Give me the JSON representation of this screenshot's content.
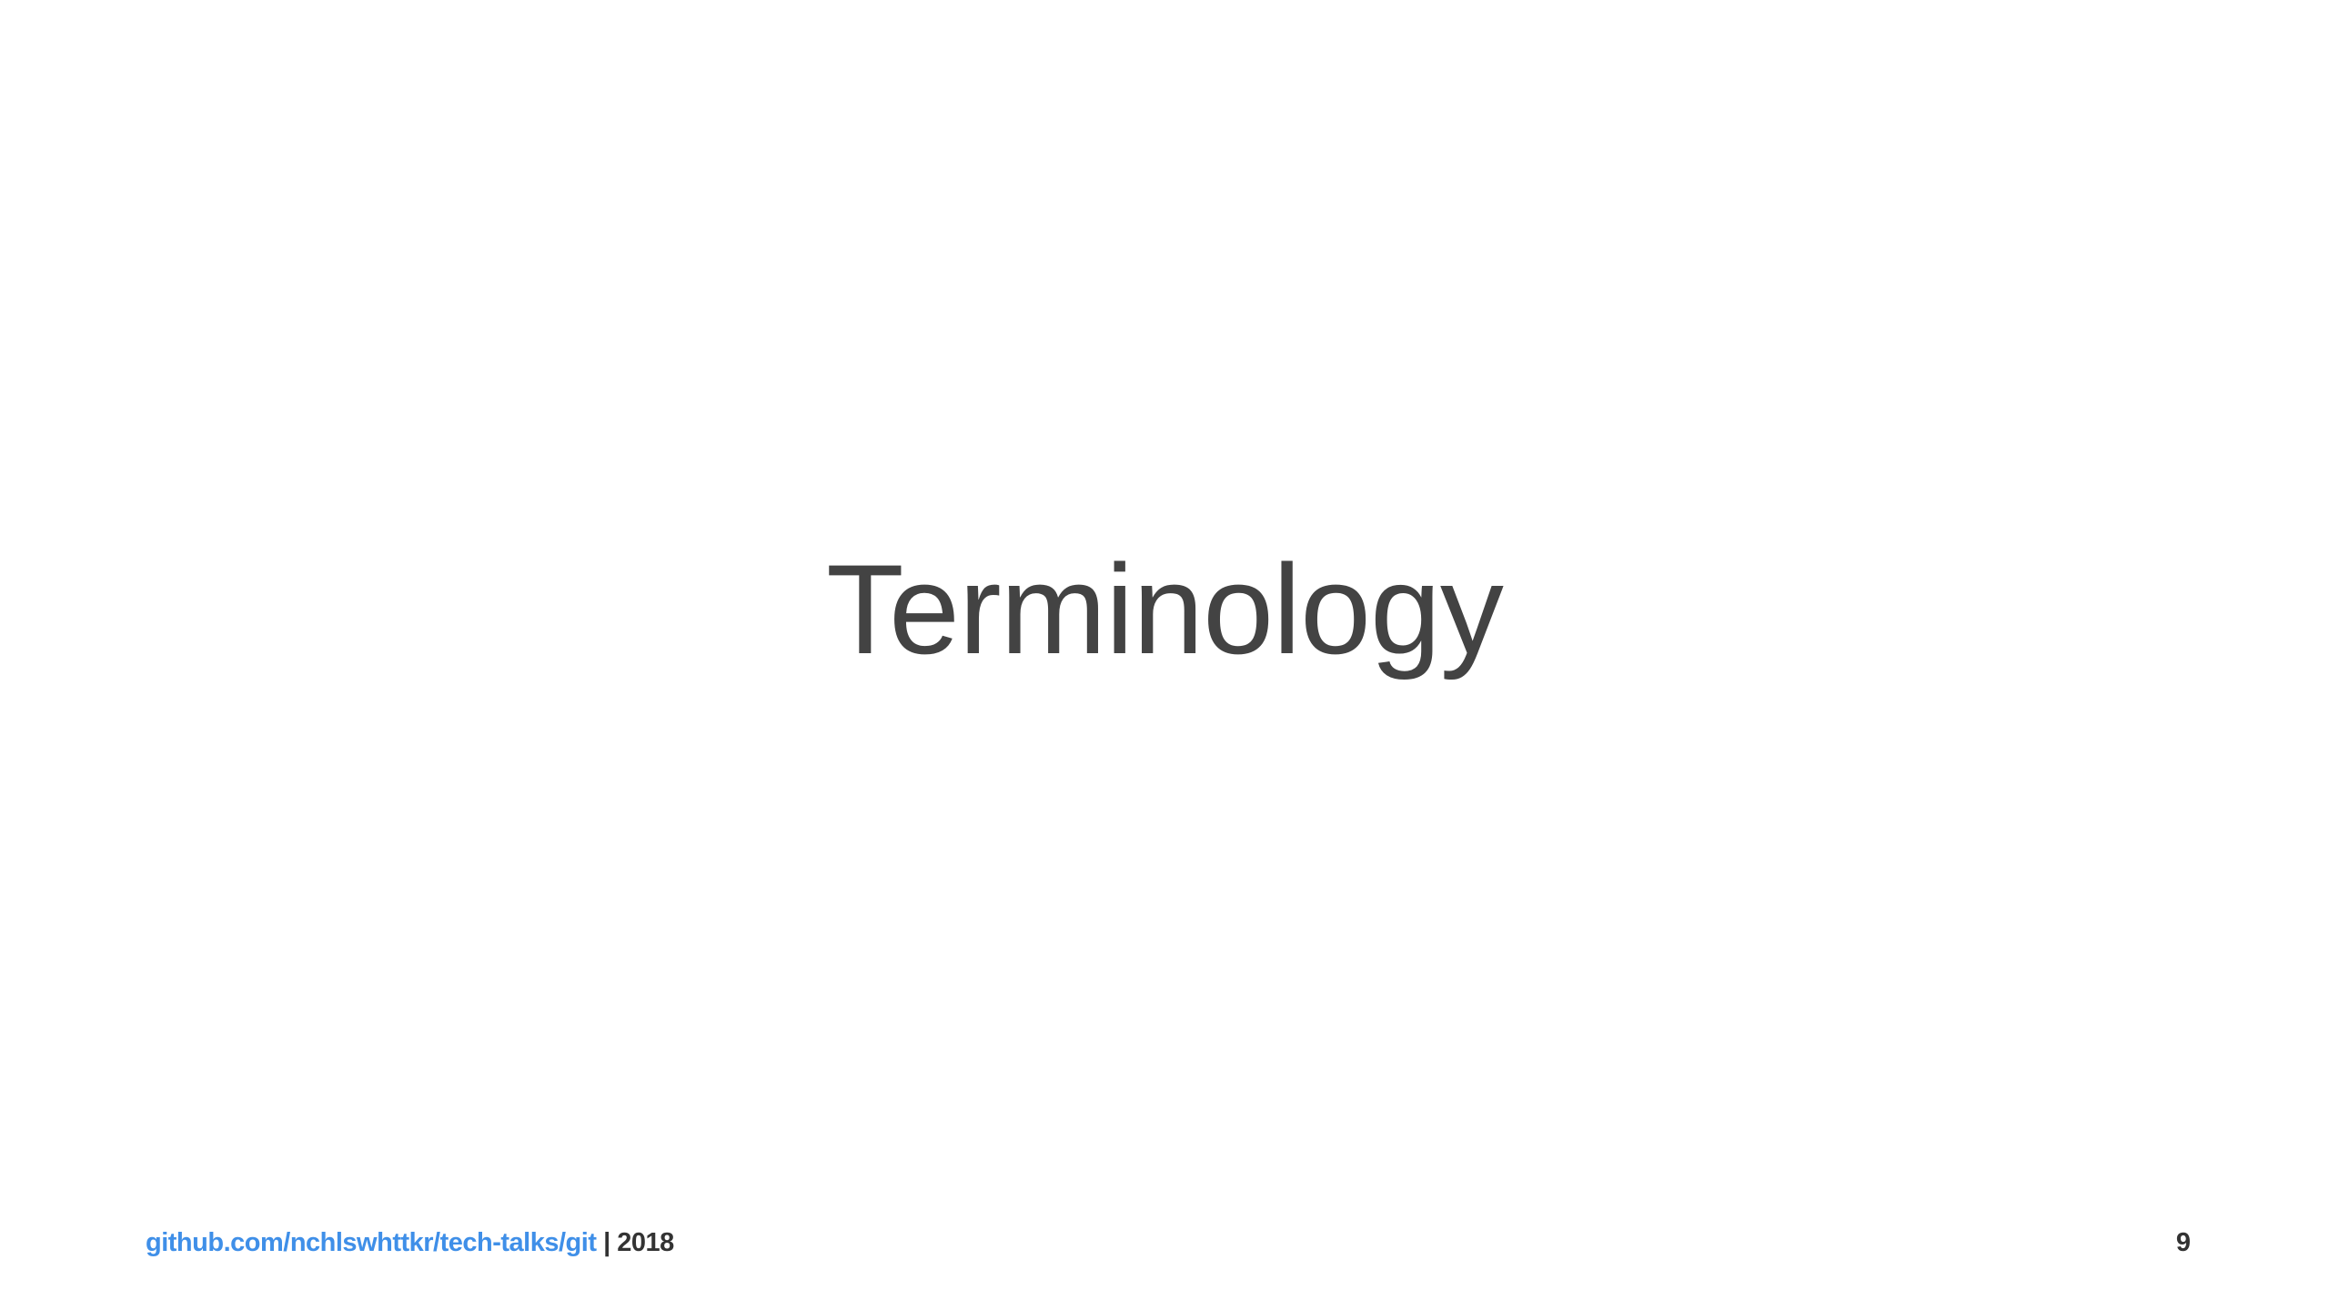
{
  "slide": {
    "title": "Terminology",
    "page_number": "9"
  },
  "footer": {
    "link_text": "github.com/nchlswhttkr/tech-talks/git",
    "separator": "|",
    "year": "2018"
  },
  "colors": {
    "background": "#ffffff",
    "title_text": "#434343",
    "link": "#3f8fe8",
    "footer_text": "#333333"
  }
}
